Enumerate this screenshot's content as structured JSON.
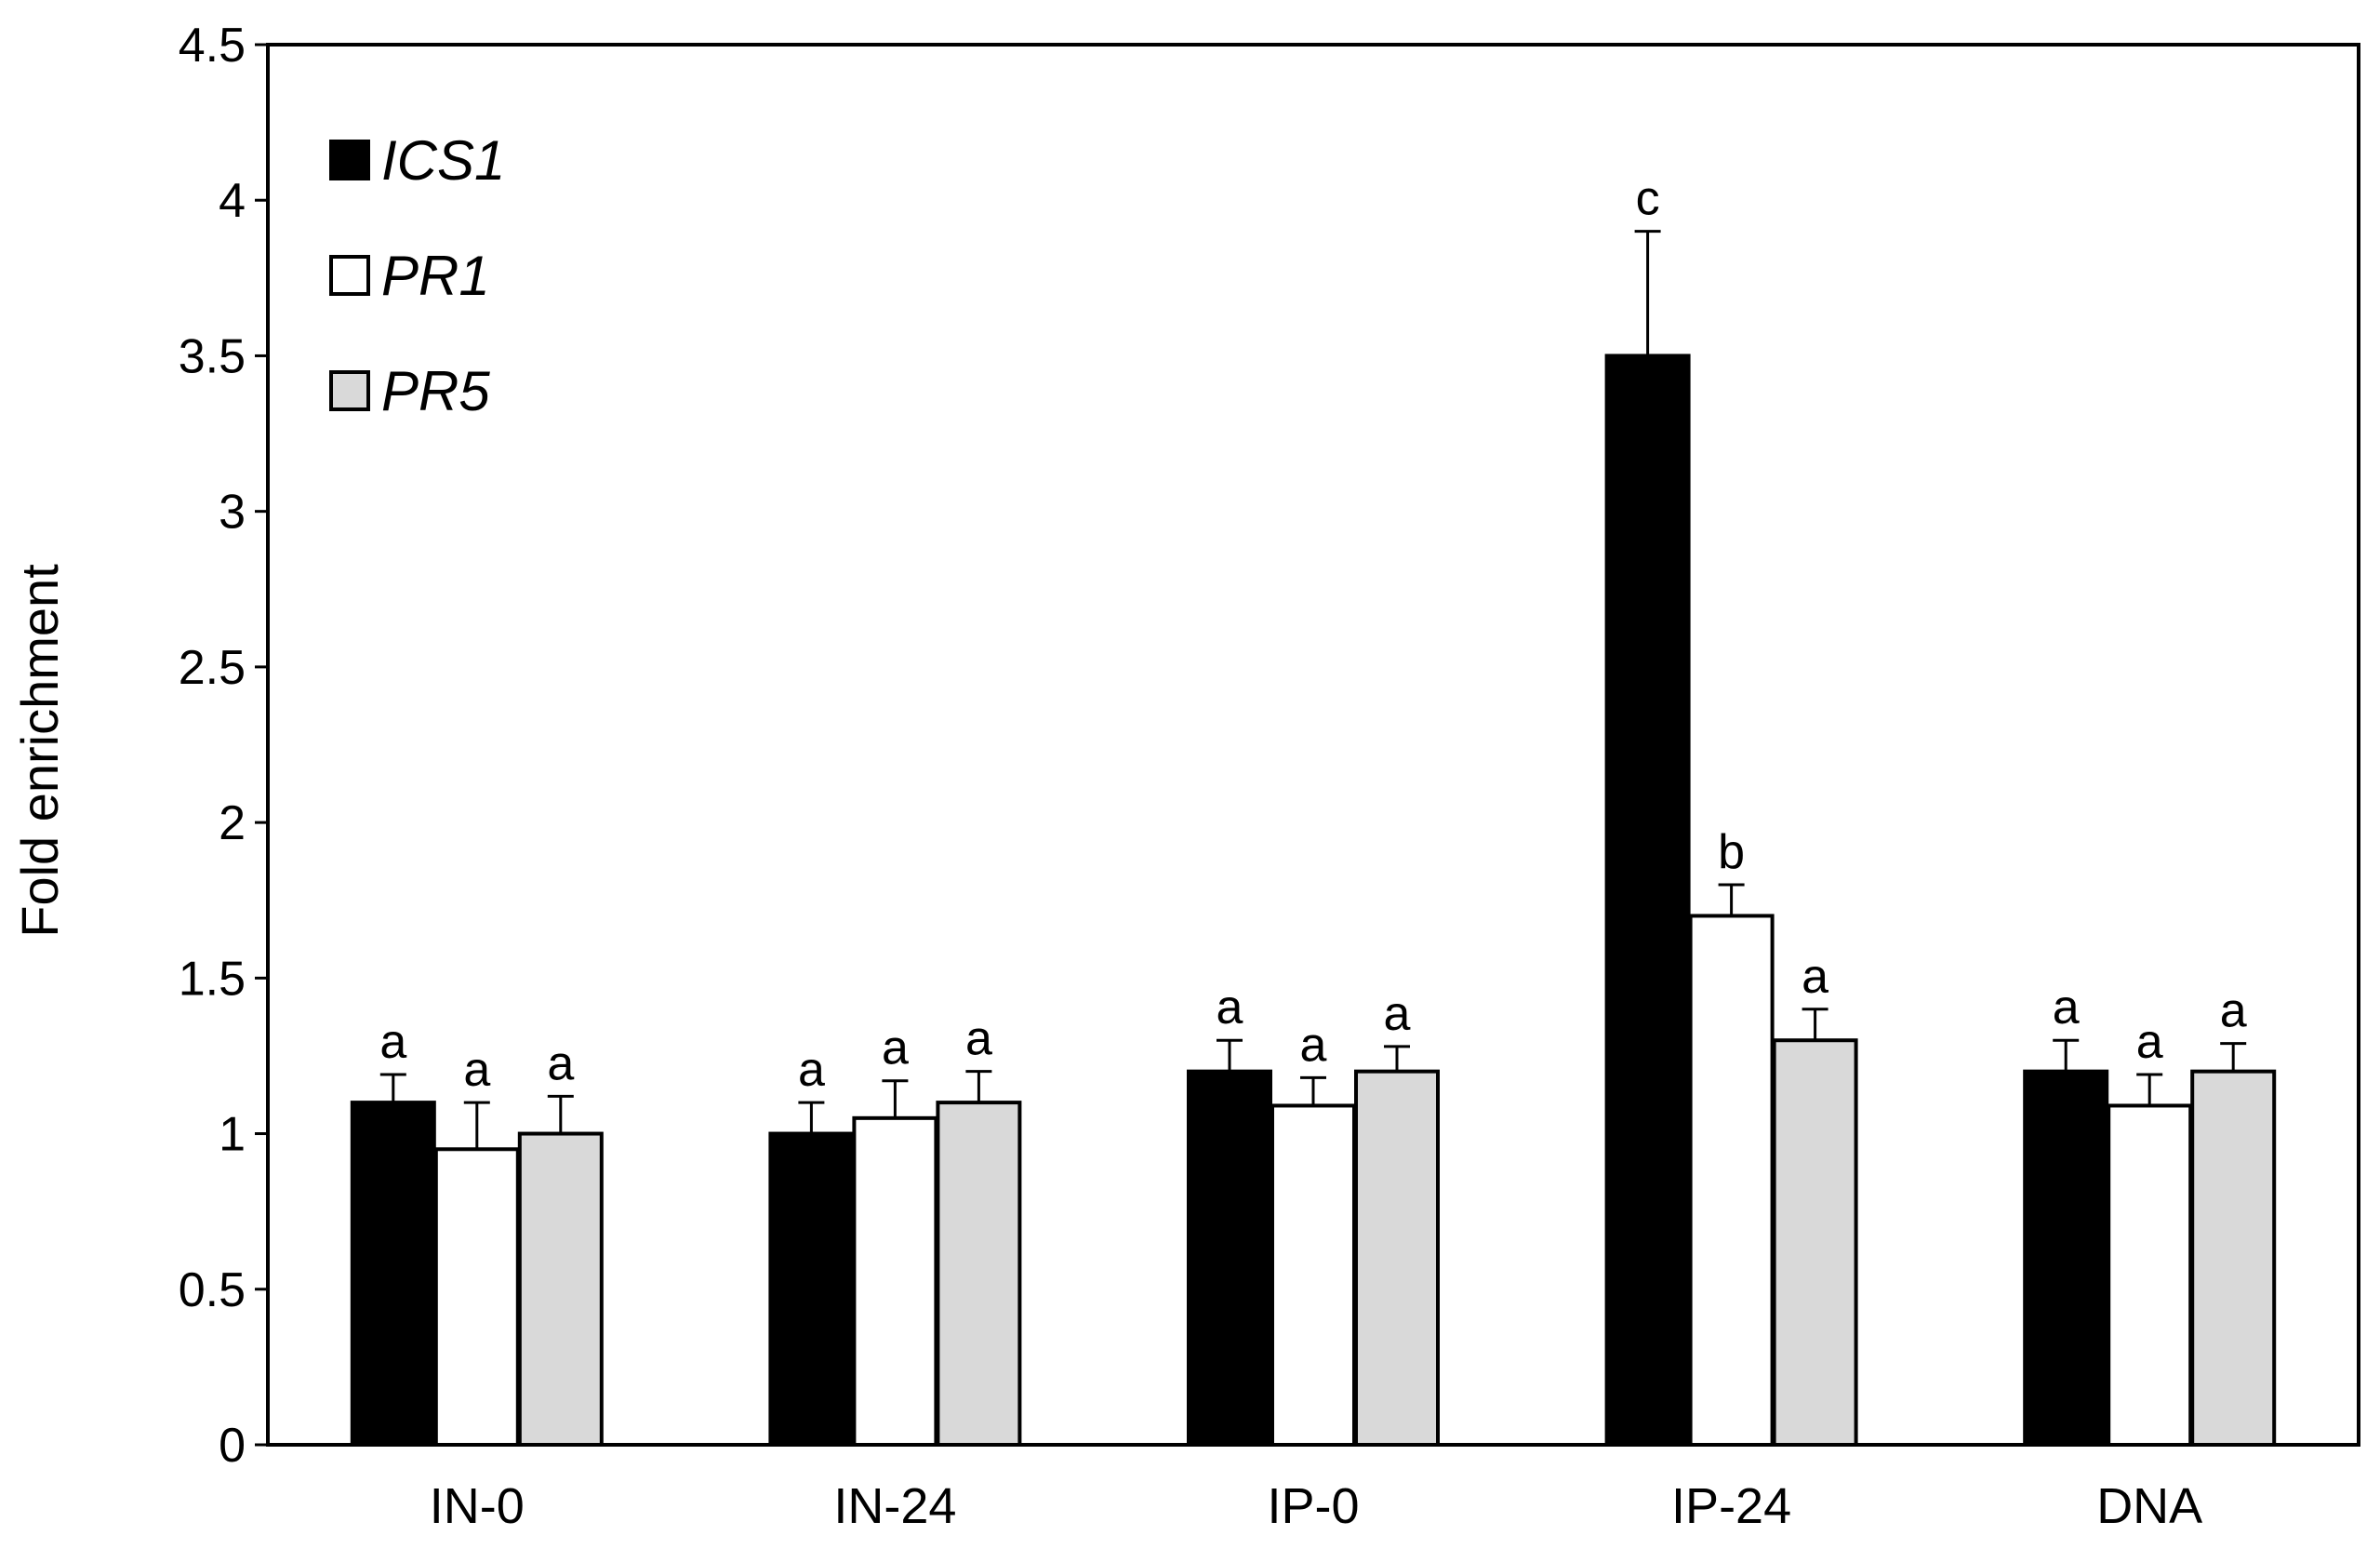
{
  "chart_data": {
    "type": "bar",
    "title": "",
    "xlabel": "",
    "ylabel": "Fold enrichment",
    "ylim": [
      0,
      4.5
    ],
    "yticks": [
      0,
      0.5,
      1,
      1.5,
      2,
      2.5,
      3,
      3.5,
      4,
      4.5
    ],
    "ytick_labels": [
      "0",
      "0.5",
      "1",
      "1.5",
      "2",
      "2.5",
      "3",
      "3.5",
      "4",
      "4.5"
    ],
    "categories": [
      "IN-0",
      "IN-24",
      "IP-0",
      "IP-24",
      "DNA"
    ],
    "legend_position": "top-left",
    "grid": false,
    "series": [
      {
        "name": "ICS1",
        "color": "#000000",
        "values": [
          1.1,
          1.0,
          1.2,
          3.5,
          1.2
        ],
        "errors": [
          0.09,
          0.1,
          0.1,
          0.4,
          0.1
        ],
        "labels": [
          "a",
          "a",
          "a",
          "c",
          "a"
        ]
      },
      {
        "name": "PR1",
        "color": "#ffffff",
        "values": [
          0.95,
          1.05,
          1.09,
          1.7,
          1.09
        ],
        "errors": [
          0.15,
          0.12,
          0.09,
          0.1,
          0.1
        ],
        "labels": [
          "a",
          "a",
          "a",
          "b",
          "a"
        ]
      },
      {
        "name": "PR5",
        "color": "#d9d9d9",
        "values": [
          1.0,
          1.1,
          1.2,
          1.3,
          1.2
        ],
        "errors": [
          0.12,
          0.1,
          0.08,
          0.1,
          0.09
        ],
        "labels": [
          "a",
          "a",
          "a",
          "a",
          "a"
        ]
      }
    ]
  }
}
